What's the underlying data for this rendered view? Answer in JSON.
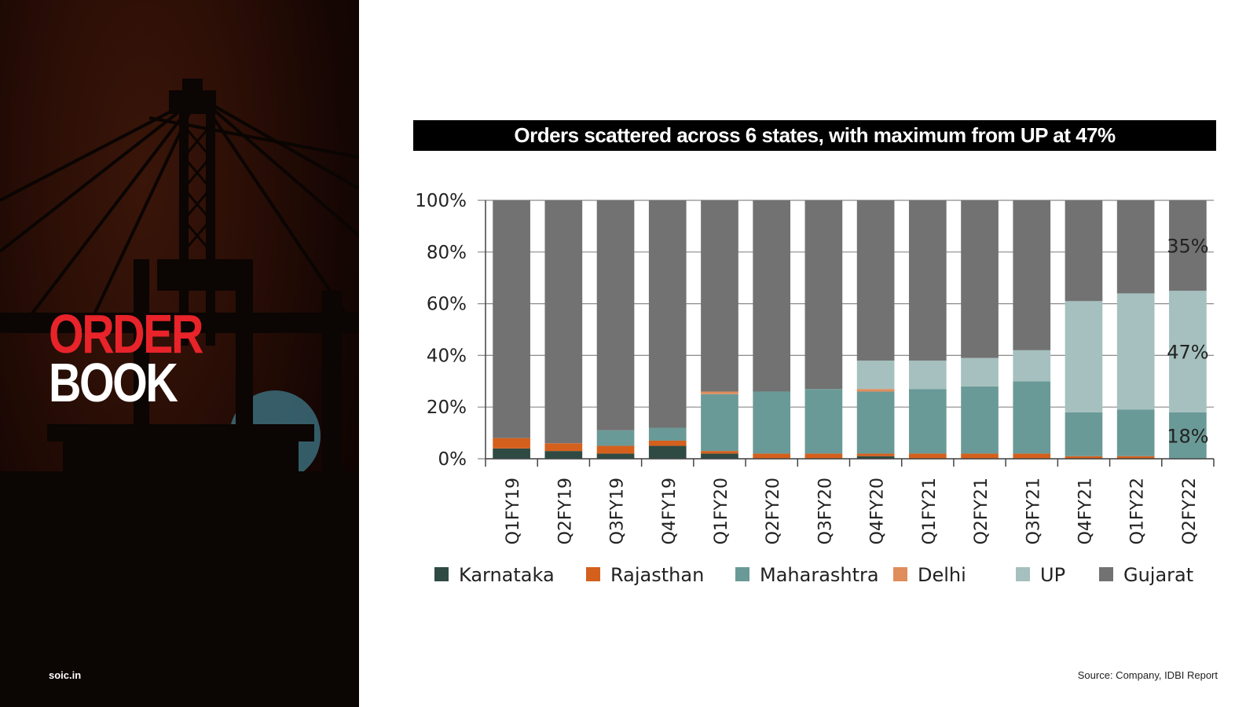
{
  "slide": {
    "title_line1": "ORDER",
    "title_line2": "BOOK",
    "site": "soic.in",
    "source": "Source: Company, IDBI Report"
  },
  "chart_data": {
    "type": "bar",
    "stacked": true,
    "title": "Orders scattered across 6 states, with maximum from UP at 47%",
    "categories": [
      "Q1FY19",
      "Q2FY19",
      "Q3FY19",
      "Q4FY19",
      "Q1FY20",
      "Q2FY20",
      "Q3FY20",
      "Q4FY20",
      "Q1FY21",
      "Q2FY21",
      "Q3FY21",
      "Q4FY21",
      "Q1FY22",
      "Q2FY22"
    ],
    "ylim": [
      0,
      100
    ],
    "yticks": [
      "0%",
      "20%",
      "40%",
      "60%",
      "80%",
      "100%"
    ],
    "grid": true,
    "legend_position": "bottom",
    "series": [
      {
        "name": "Karnataka",
        "color": "#2f4a42",
        "values": [
          4,
          3,
          2,
          5,
          2,
          0,
          0,
          1,
          0,
          0,
          0,
          0,
          0,
          0
        ]
      },
      {
        "name": "Rajasthan",
        "color": "#d4601d",
        "values": [
          4,
          3,
          3,
          2,
          1,
          2,
          2,
          1,
          2,
          2,
          2,
          1,
          1,
          0
        ]
      },
      {
        "name": "Maharashtra",
        "color": "#6a9a97",
        "values": [
          0,
          0,
          6,
          5,
          22,
          24,
          25,
          24,
          25,
          26,
          28,
          17,
          18,
          18
        ]
      },
      {
        "name": "Delhi",
        "color": "#e08d5c",
        "values": [
          0,
          0,
          0,
          0,
          1,
          0,
          0,
          1,
          0,
          0,
          0,
          0,
          0,
          0
        ]
      },
      {
        "name": "UP",
        "color": "#a5c0be",
        "values": [
          0,
          0,
          0,
          0,
          0,
          0,
          0,
          11,
          11,
          11,
          12,
          43,
          45,
          47
        ]
      },
      {
        "name": "Gujarat",
        "color": "#727272",
        "values": [
          92,
          94,
          89,
          88,
          74,
          74,
          73,
          62,
          62,
          61,
          58,
          39,
          36,
          35
        ]
      }
    ],
    "annotations": [
      {
        "text": "35%",
        "series": "Gujarat",
        "category": "Q2FY22"
      },
      {
        "text": "47%",
        "series": "UP",
        "category": "Q2FY22"
      },
      {
        "text": "18%",
        "series": "Maharashtra",
        "category": "Q2FY22"
      }
    ]
  }
}
